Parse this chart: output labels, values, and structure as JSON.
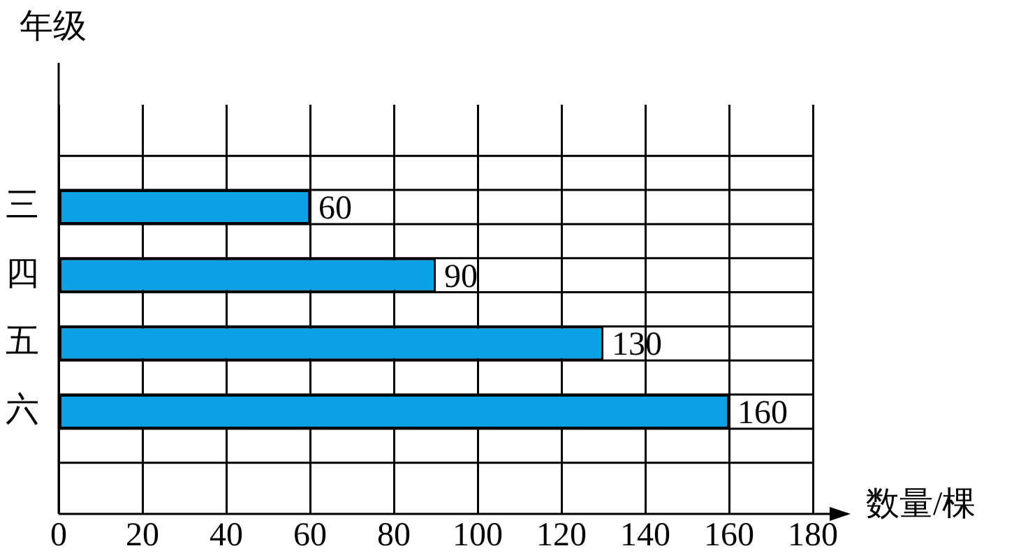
{
  "chart_data": {
    "type": "bar",
    "orientation": "horizontal",
    "categories": [
      "三",
      "四",
      "五",
      "六"
    ],
    "values": [
      60,
      90,
      130,
      160
    ],
    "color": "#0ba1e4",
    "xlim": [
      0,
      180
    ],
    "xticks": [
      0,
      20,
      40,
      60,
      80,
      100,
      120,
      140,
      160,
      180
    ],
    "xlabel": "数量/棵",
    "ylabel": "年级",
    "grid": true,
    "data_labels": true
  }
}
